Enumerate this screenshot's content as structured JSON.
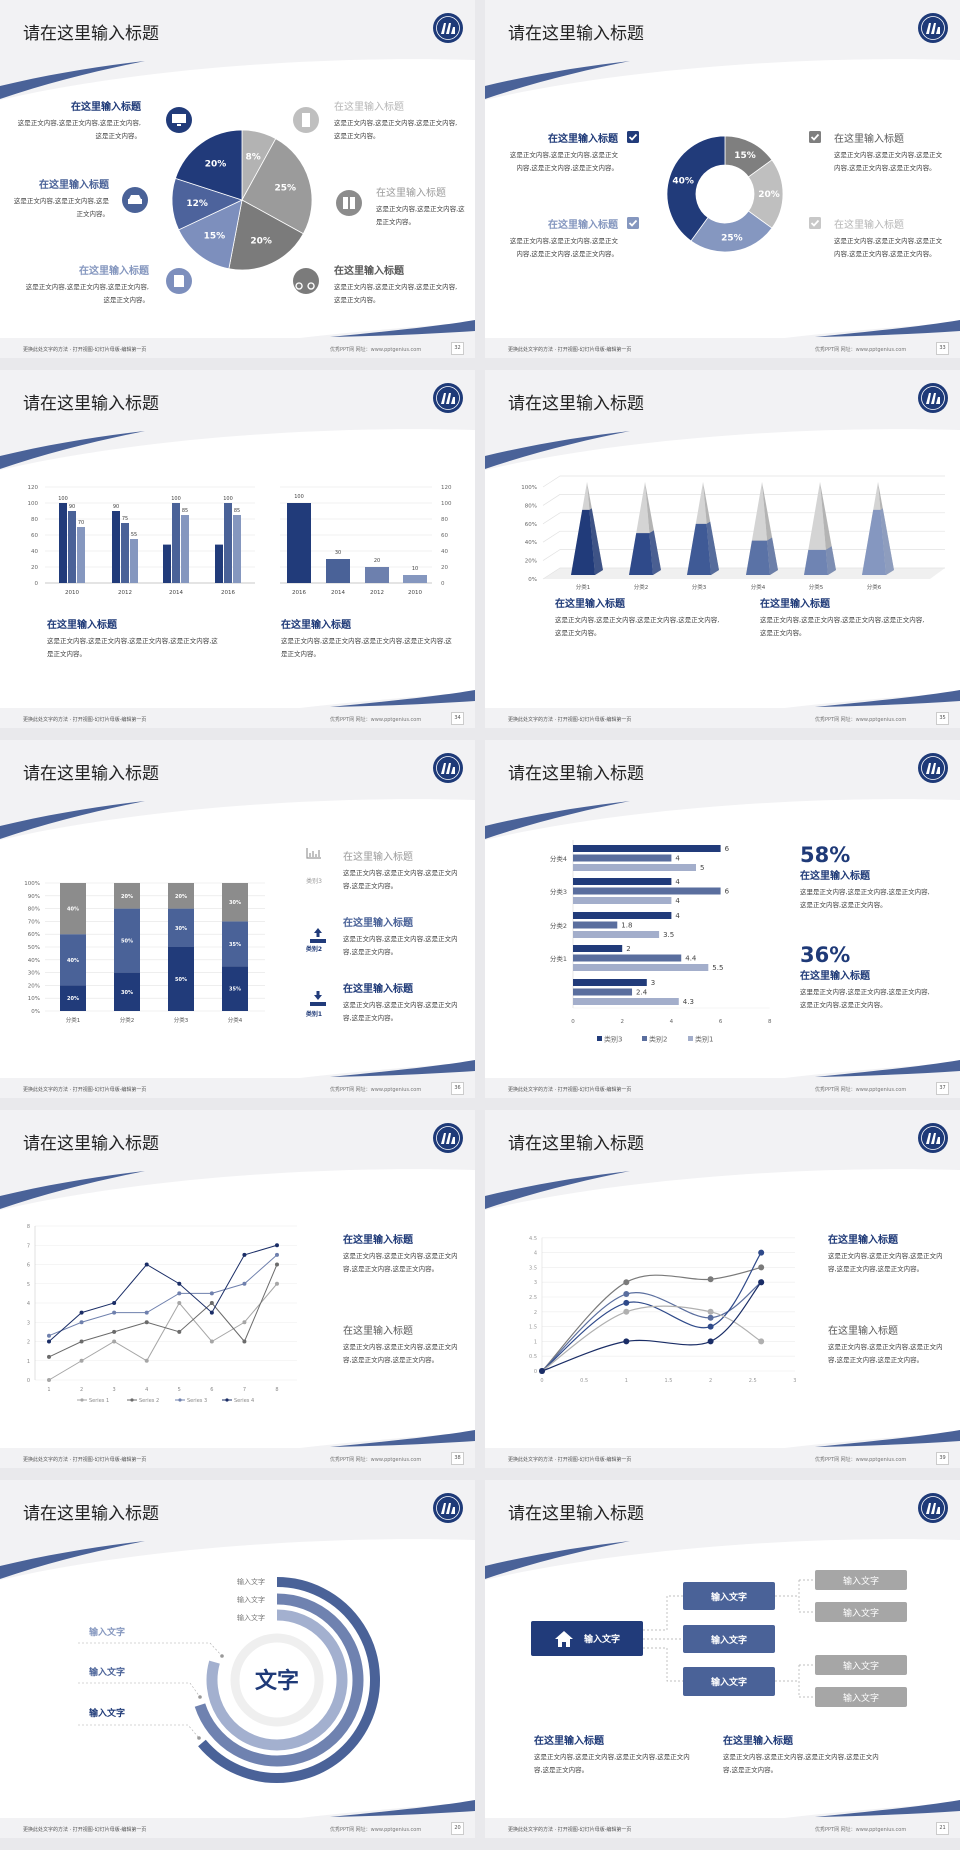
{
  "footer": {
    "left": "更换此处文字的方法 · 打开视图-幻灯片母版-编辑第一页",
    "right": "优秀PPT网    网址：www.pptgenius.com"
  },
  "colors": {
    "navy": "#213b7a",
    "medium": "#4a6298",
    "light": "#8597bf",
    "gray": "#808080",
    "light_gray": "#bfbfbf"
  },
  "slides": [
    {
      "title": "请在这里输入标题",
      "page": "32",
      "items": [
        {
          "title": "在这里输入标题",
          "body": "这是正文内容,这是正文内容,这是正文内容,这是正文内容。",
          "icon": "monitor-icon"
        },
        {
          "title": "在这里输入标题",
          "body": "这是正文内容,这是正文内容,这是正文内容。",
          "icon": "car-icon"
        },
        {
          "title": "在这里输入标题",
          "body": "这是正文内容,这是正文内容,这是正文内容,这是正文内容。",
          "icon": "book-icon"
        },
        {
          "title": "在这里输入标题",
          "body": "这是正文内容,这是正文内容,这是正文内容,这是正文内容。",
          "icon": "phone-icon"
        },
        {
          "title": "在这里输入标题",
          "body": "这是正文内容,这是正文内容,这是正文内容。",
          "icon": "binoculars-icon"
        },
        {
          "title": "在这里输入标题",
          "body": "这是正文内容,这是正文内容,这是正文内容,这是正文内容。",
          "icon": "bicycle-icon"
        }
      ]
    },
    {
      "title": "请在这里输入标题",
      "page": "33",
      "items": [
        {
          "title": "在这里输入标题",
          "body": "这是正文内容,这是正文内容,这是正文内容,这是正文内容,这是正文内容。"
        },
        {
          "title": "在这里输入标题",
          "body": "这是正文内容,这是正文内容,这是正文内容,这是正文内容,这是正文内容。"
        },
        {
          "title": "在这里输入标题",
          "body": "这是正文内容,这是正文内容,这是正文内容,这是正文内容,这是正文内容。"
        },
        {
          "title": "在这里输入标题",
          "body": "这是正文内容,这是正文内容,这是正文内容,这是正文内容,这是正文内容。"
        }
      ]
    },
    {
      "title": "请在这里输入标题",
      "page": "34",
      "items": [
        {
          "title": "在这里输入标题",
          "body": "这是正文内容,这是正文内容,这是正文内容,这是正文内容,这是正文内容。"
        },
        {
          "title": "在这里输入标题",
          "body": "这是正文内容,这是正文内容,这是正文内容,这是正文内容,这是正文内容。"
        }
      ]
    },
    {
      "title": "请在这里输入标题",
      "page": "35",
      "items": [
        {
          "title": "在这里输入标题",
          "body": "这是正文内容,这是正文内容,这是正文内容,这是正文内容,这是正文内容。"
        },
        {
          "title": "在这里输入标题",
          "body": "这是正文内容,这是正文内容,这是正文内容,这是正文内容,这是正文内容。"
        }
      ]
    },
    {
      "title": "请在这里输入标题",
      "page": "36",
      "items": [
        {
          "title": "在这里输入标题",
          "body": "这是正文内容,这是正文内容,这是正文内容,这是正文内容。",
          "label": "类别3",
          "icon": "bar-chart-icon"
        },
        {
          "title": "在这里输入标题",
          "body": "这是正文内容,这是正文内容,这是正文内容,这是正文内容。",
          "label": "类别2",
          "icon": "upload-icon"
        },
        {
          "title": "在这里输入标题",
          "body": "这是正文内容,这是正文内容,这是正文内容,这是正文内容。",
          "label": "类别1",
          "icon": "download-icon"
        }
      ]
    },
    {
      "title": "请在这里输入标题",
      "page": "37",
      "items": [
        {
          "stat": "58%",
          "title": "在这里输入标题",
          "body": "这里是正文内容,这是正文内容,这是正文内容,这是正文内容,这是正文内容。"
        },
        {
          "stat": "36%",
          "title": "在这里输入标题",
          "body": "这里是正文内容,这是正文内容,这是正文内容,这是正文内容,这是正文内容。"
        }
      ]
    },
    {
      "title": "请在这里输入标题",
      "page": "38",
      "items": [
        {
          "title": "在这里输入标题",
          "body": "这是正文内容,这是正文内容,这是正文内容,这是正文内容,这是正文内容。"
        },
        {
          "title": "在这里输入标题",
          "body": "这是正文内容,这是正文内容,这是正文内容,这是正文内容,这是正文内容。"
        }
      ]
    },
    {
      "title": "请在这里输入标题",
      "page": "39",
      "items": [
        {
          "title": "在这里输入标题",
          "body": "这是正文内容,这是正文内容,这是正文内容,这是正文内容,这是正文内容。"
        },
        {
          "title": "在这里输入标题",
          "body": "这是正文内容,这是正文内容,这是正文内容,这是正文内容,这是正文内容。"
        }
      ]
    },
    {
      "title": "请在这里输入标题",
      "page": "20",
      "center": "文字",
      "right_labels": [
        "输入文字",
        "输入文字",
        "输入文字"
      ],
      "left_labels": [
        "输入文字",
        "输入文字",
        "输入文字"
      ]
    },
    {
      "title": "请在这里输入标题",
      "page": "21",
      "root": "输入文字",
      "mid": [
        "输入文字",
        "输入文字",
        "输入文字"
      ],
      "leaves": [
        "输入文字",
        "输入文字",
        "输入文字",
        "输入文字"
      ],
      "items": [
        {
          "title": "在这里输入标题",
          "body": "这是正文内容,这是正文内容,这是正文内容,这是正文内容,这是正文内容。"
        },
        {
          "title": "在这里输入标题",
          "body": "这是正文内容,这是正文内容,这是正文内容,这是正文内容,这是正文内容。"
        }
      ]
    }
  ],
  "chart_data": [
    {
      "type": "pie",
      "values": [
        8,
        25,
        20,
        15,
        12,
        20
      ],
      "labels": [
        "8%",
        "25%",
        "20%",
        "15%",
        "12%",
        "20%"
      ],
      "colors": [
        "#b3b3b3",
        "#9b9b9b",
        "#7b7b7b",
        "#7d8fbd",
        "#4d639c",
        "#213a7a"
      ]
    },
    {
      "type": "pie",
      "donut": true,
      "values": [
        15,
        20,
        25,
        40
      ],
      "labels": [
        "15%",
        "20%",
        "25%",
        "40%"
      ],
      "colors": [
        "#7f7f7f",
        "#bfbfbf",
        "#8597c0",
        "#213b7a"
      ]
    },
    {
      "type": "bar",
      "categories": [
        "2010",
        "2012",
        "2014",
        "2016"
      ],
      "ylim": [
        0,
        120
      ],
      "yticks": [
        0,
        20,
        40,
        60,
        80,
        100,
        120
      ],
      "series": [
        {
          "values": [
            100,
            90,
            48,
            48
          ],
          "data_labels": [
            "100",
            "90",
            null,
            null
          ]
        },
        {
          "values": [
            90,
            75,
            100,
            100
          ],
          "data_labels": [
            "90",
            "75",
            "100",
            "100"
          ]
        },
        {
          "values": [
            70,
            55,
            85,
            85
          ],
          "data_labels": [
            "70",
            "55",
            "85",
            "85"
          ]
        }
      ],
      "colors": [
        "#213b7a",
        "#4a6298",
        "#8597bf"
      ]
    },
    {
      "type": "bar",
      "categories": [
        "2016",
        "2014",
        "2012",
        "2010"
      ],
      "ylim": [
        0,
        120
      ],
      "yticks": [
        0,
        20,
        40,
        60,
        80,
        100,
        120
      ],
      "axis": "right",
      "values": [
        100,
        30,
        20,
        10
      ],
      "data_labels": [
        "100",
        "30",
        "20",
        "10"
      ],
      "colors": [
        "#213b7a",
        "#4a6298",
        "#6d80ae",
        "#8597bf"
      ]
    },
    {
      "type": "bar",
      "style": "3d-pyramid",
      "categories": [
        "分类1",
        "分类2",
        "分类3",
        "分类4",
        "分类5",
        "分类6"
      ],
      "values": [
        70,
        45,
        55,
        37,
        27,
        70
      ],
      "ylim": [
        0,
        100
      ],
      "yticks": [
        "0%",
        "20%",
        "40%",
        "60%",
        "80%",
        "100%"
      ],
      "colors": [
        "#213b7a",
        "#2f4a8a",
        "#3f5a96",
        "#5a72a6",
        "#6f84b3",
        "#8597c0"
      ]
    },
    {
      "type": "bar",
      "stacked": true,
      "categories": [
        "分类1",
        "分类2",
        "分类3",
        "分类4"
      ],
      "yticks": [
        "0%",
        "10%",
        "20%",
        "30%",
        "40%",
        "50%",
        "60%",
        "70%",
        "80%",
        "90%",
        "100%"
      ],
      "series": [
        {
          "values": [
            20,
            30,
            50,
            35
          ]
        },
        {
          "values": [
            40,
            50,
            30,
            35
          ]
        },
        {
          "values": [
            40,
            20,
            20,
            30
          ]
        }
      ],
      "colors": [
        "#213b7a",
        "#4a6298",
        "#8c8c8c"
      ]
    },
    {
      "type": "bar",
      "orientation": "horizontal",
      "categories": [
        "分类4",
        "分类3",
        "分类2",
        "分类1",
        ""
      ],
      "xlim": [
        0,
        8
      ],
      "xticks": [
        0,
        2,
        4,
        6,
        8
      ],
      "series": [
        {
          "name": "类别3",
          "values": [
            6,
            4,
            4,
            2,
            3
          ]
        },
        {
          "name": "类别2",
          "values": [
            4,
            6,
            1.8,
            4.4,
            2.4
          ]
        },
        {
          "name": "类别1",
          "values": [
            5,
            4,
            3.5,
            5.5,
            4.3
          ]
        }
      ],
      "colors": [
        "#213b7a",
        "#5a6e9e",
        "#a3aecb"
      ],
      "legend": "bottom"
    },
    {
      "type": "line",
      "x": [
        1,
        2,
        3,
        4,
        5,
        6,
        7,
        8
      ],
      "ylim": [
        0,
        8
      ],
      "yticks": [
        0,
        1,
        2,
        3,
        4,
        5,
        6,
        7,
        8
      ],
      "series": [
        {
          "name": "Series 1",
          "values": [
            0,
            1,
            2,
            1,
            4,
            2,
            3,
            5
          ]
        },
        {
          "name": "Series 2",
          "values": [
            1.2,
            2,
            2.5,
            3,
            2.5,
            4,
            2,
            6
          ]
        },
        {
          "name": "Series 3",
          "values": [
            2.3,
            3,
            3.5,
            3.5,
            4.5,
            4.5,
            5,
            6.5
          ]
        },
        {
          "name": "Series 4",
          "values": [
            2,
            3.5,
            4,
            6,
            5,
            3.5,
            6.5,
            7
          ]
        }
      ],
      "colors": [
        "#a6a6a6",
        "#6b6b6b",
        "#6f80ad",
        "#1a2d66"
      ],
      "legend": "bottom"
    },
    {
      "type": "scatter",
      "smooth": true,
      "x": [
        0,
        1,
        2,
        2.6
      ],
      "xlim": [
        0,
        3
      ],
      "ylim": [
        0,
        4.5
      ],
      "xticks": [
        0,
        0.5,
        1,
        1.5,
        2,
        2.5,
        3
      ],
      "yticks": [
        0,
        0.5,
        1,
        1.5,
        2,
        2.5,
        3,
        3.5,
        4,
        4.5
      ],
      "series": [
        {
          "values": [
            0,
            3,
            3.1,
            3.5
          ]
        },
        {
          "values": [
            0,
            2.6,
            1.8,
            3
          ]
        },
        {
          "values": [
            0,
            2.3,
            1.5,
            4
          ]
        },
        {
          "values": [
            0,
            2,
            2,
            1
          ]
        },
        {
          "values": [
            0,
            1,
            1,
            3
          ]
        }
      ],
      "colors": [
        "#7a7a7a",
        "#5a6e9e",
        "#2f4a8a",
        "#b0b0b0",
        "#1a2d66"
      ]
    }
  ]
}
